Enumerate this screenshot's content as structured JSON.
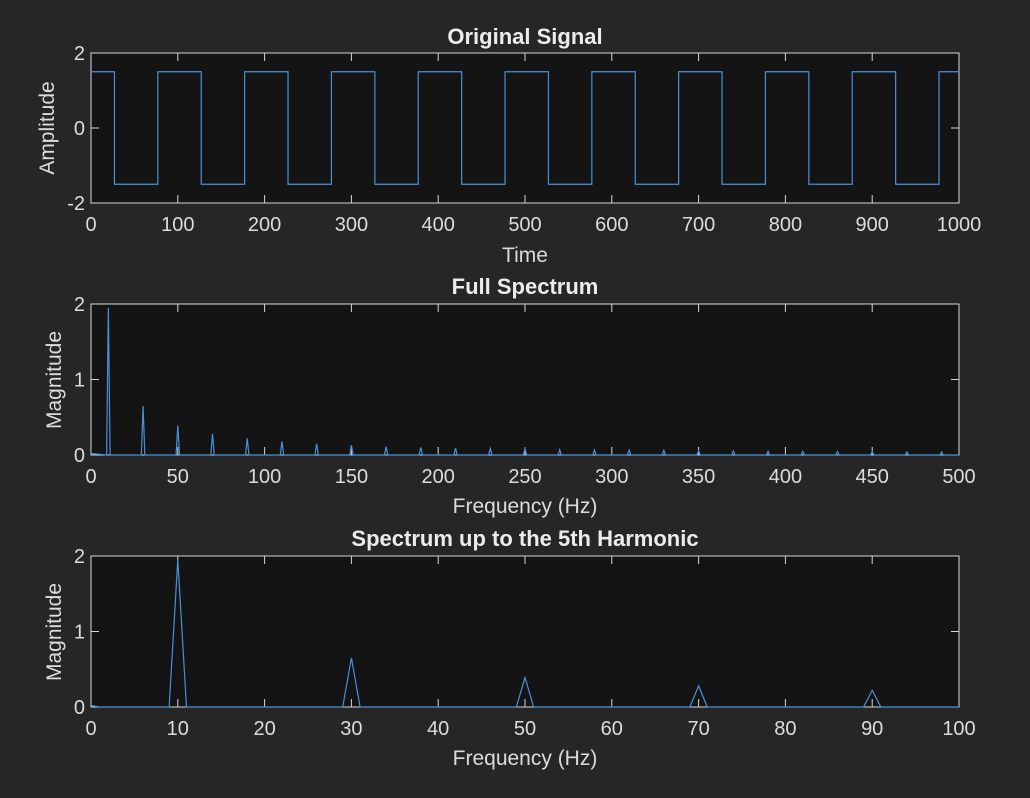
{
  "figure": {
    "background": "#262626",
    "axes_background": "#141414",
    "axis_color": "#d6d6d6",
    "line_color": "#4a90d9"
  },
  "chart_data": [
    {
      "type": "line",
      "title": "Original Signal",
      "xlabel": "Time",
      "ylabel": "Amplitude",
      "xlim": [
        0,
        1000
      ],
      "ylim": [
        -2,
        2
      ],
      "xticks": [
        0,
        100,
        200,
        300,
        400,
        500,
        600,
        700,
        800,
        900,
        1000
      ],
      "yticks": [
        -2,
        0,
        2
      ],
      "grid": false,
      "series": [
        {
          "x": [
            0,
            27,
            27,
            77,
            77,
            127,
            127,
            177,
            177,
            227,
            227,
            277,
            277,
            327,
            327,
            377,
            377,
            427,
            427,
            477,
            477,
            527,
            527,
            577,
            577,
            627,
            627,
            677,
            677,
            727,
            727,
            777,
            777,
            827,
            827,
            877,
            877,
            927,
            927,
            977,
            977,
            1000
          ],
          "y": [
            1.5,
            1.5,
            -1.5,
            -1.5,
            1.5,
            1.5,
            -1.5,
            -1.5,
            1.5,
            1.5,
            -1.5,
            -1.5,
            1.5,
            1.5,
            -1.5,
            -1.5,
            1.5,
            1.5,
            -1.5,
            -1.5,
            1.5,
            1.5,
            -1.5,
            -1.5,
            1.5,
            1.5,
            -1.5,
            -1.5,
            1.5,
            1.5,
            -1.5,
            -1.5,
            1.5,
            1.5,
            -1.5,
            -1.5,
            1.5,
            1.5,
            -1.5,
            -1.5,
            1.5,
            1.5
          ]
        }
      ]
    },
    {
      "type": "line",
      "title": "Full Spectrum",
      "xlabel": "Frequency (Hz)",
      "ylabel": "Magnitude",
      "xlim": [
        0,
        500
      ],
      "ylim": [
        0,
        2
      ],
      "xticks": [
        0,
        50,
        100,
        150,
        200,
        250,
        300,
        350,
        400,
        450,
        500
      ],
      "yticks": [
        0,
        1,
        2
      ],
      "grid": false,
      "series": [
        {
          "x": [
            0,
            9,
            10,
            11,
            29,
            30,
            31,
            49,
            50,
            51,
            69,
            70,
            71,
            89,
            90,
            91,
            109,
            110,
            111,
            129,
            130,
            131,
            149,
            150,
            151,
            169,
            170,
            171,
            189,
            190,
            191,
            209,
            210,
            211,
            229,
            230,
            231,
            249,
            250,
            251,
            269,
            270,
            271,
            289,
            290,
            291,
            309,
            310,
            311,
            329,
            330,
            331,
            349,
            350,
            351,
            369,
            370,
            371,
            389,
            390,
            391,
            409,
            410,
            411,
            429,
            430,
            431,
            449,
            450,
            451,
            469,
            470,
            471,
            489,
            490,
            491,
            500
          ],
          "y": [
            0.02,
            0,
            1.95,
            0,
            0,
            0.65,
            0,
            0,
            0.39,
            0,
            0,
            0.28,
            0,
            0,
            0.22,
            0,
            0,
            0.18,
            0,
            0,
            0.15,
            0,
            0,
            0.13,
            0,
            0,
            0.11,
            0,
            0,
            0.1,
            0,
            0,
            0.09,
            0,
            0,
            0.085,
            0,
            0,
            0.08,
            0,
            0,
            0.07,
            0,
            0,
            0.067,
            0,
            0,
            0.063,
            0,
            0,
            0.06,
            0,
            0,
            0.056,
            0,
            0,
            0.053,
            0,
            0,
            0.05,
            0,
            0,
            0.048,
            0,
            0,
            0.046,
            0,
            0,
            0.044,
            0,
            0,
            0.042,
            0,
            0,
            0.04,
            0,
            0
          ]
        }
      ]
    },
    {
      "type": "line",
      "title": "Spectrum up to the 5th Harmonic",
      "xlabel": "Frequency (Hz)",
      "ylabel": "Magnitude",
      "xlim": [
        0,
        100
      ],
      "ylim": [
        0,
        2
      ],
      "xticks": [
        0,
        10,
        20,
        30,
        40,
        50,
        60,
        70,
        80,
        90,
        100
      ],
      "yticks": [
        0,
        1,
        2
      ],
      "grid": false,
      "series": [
        {
          "x": [
            0,
            1,
            9,
            10,
            11,
            29,
            30,
            31,
            49,
            50,
            51,
            69,
            70,
            71,
            89,
            90,
            91,
            100
          ],
          "y": [
            0.02,
            0,
            0,
            1.95,
            0,
            0,
            0.65,
            0,
            0,
            0.39,
            0,
            0,
            0.28,
            0,
            0,
            0.22,
            0,
            0
          ]
        }
      ]
    }
  ]
}
